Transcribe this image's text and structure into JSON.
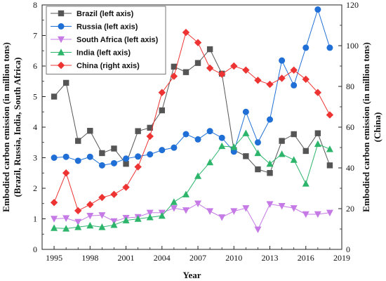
{
  "chart_data": {
    "type": "line",
    "x": [
      1995,
      1996,
      1997,
      1998,
      1999,
      2000,
      2001,
      2002,
      2003,
      2004,
      2005,
      2006,
      2007,
      2008,
      2009,
      2010,
      2011,
      2012,
      2013,
      2014,
      2015,
      2016,
      2017,
      2018
    ],
    "xlabel": "Year",
    "ylabel_left": "Embodied carbon emission (in million tons) (Brazil, Russia, India, South Africa)",
    "ylabel_left_lines": [
      "Embodied carbon emission (in million tons)",
      "(Brazil, Russia, India, South Africa)"
    ],
    "ylabel_right": "Embodied carbon emission (in million tons) (China)",
    "ylabel_right_lines": [
      "Embodied carbon emission (in million tons)",
      "(China)"
    ],
    "xlim": [
      1994,
      2019
    ],
    "x_ticks": [
      1995,
      1998,
      2001,
      2004,
      2007,
      2010,
      2013,
      2016,
      2019
    ],
    "ylim_left": [
      0,
      8
    ],
    "y_ticks_left": [
      0,
      1,
      2,
      3,
      4,
      5,
      6,
      7,
      8
    ],
    "ylim_right": [
      0,
      120
    ],
    "y_ticks_right": [
      0,
      20,
      40,
      60,
      80,
      100,
      120
    ],
    "legend_position": "top-left",
    "grid": false,
    "series": [
      {
        "name": "Brazil (left axis)",
        "axis": "left",
        "color": "#555555",
        "marker": "square",
        "values": [
          5.0,
          5.45,
          3.55,
          3.88,
          3.15,
          3.3,
          2.8,
          3.87,
          3.98,
          4.55,
          5.98,
          5.8,
          6.1,
          6.55,
          5.75,
          3.25,
          3.05,
          2.62,
          2.5,
          3.55,
          3.77,
          3.22,
          3.8,
          2.75
        ]
      },
      {
        "name": "Russia (left axis)",
        "axis": "left",
        "color": "#1f6fd6",
        "marker": "circle",
        "values": [
          3.0,
          3.03,
          2.9,
          3.03,
          2.75,
          2.82,
          2.97,
          3.04,
          3.11,
          3.25,
          3.33,
          3.77,
          3.6,
          3.87,
          3.65,
          3.2,
          4.5,
          3.5,
          4.25,
          6.18,
          5.37,
          6.6,
          7.85,
          6.6
        ]
      },
      {
        "name": "South Africa (left axis)",
        "axis": "left",
        "color": "#c57ae6",
        "marker": "triangle-down",
        "values": [
          1.0,
          1.02,
          0.9,
          1.1,
          1.12,
          0.92,
          1.03,
          1.06,
          1.2,
          1.2,
          1.35,
          1.28,
          1.5,
          1.25,
          1.05,
          1.25,
          1.35,
          0.65,
          1.48,
          1.42,
          1.35,
          1.15,
          1.15,
          1.2
        ]
      },
      {
        "name": "India (left axis)",
        "axis": "left",
        "color": "#2db56b",
        "marker": "triangle-up",
        "values": [
          0.7,
          0.68,
          0.73,
          0.78,
          0.73,
          0.8,
          0.95,
          1.0,
          1.05,
          1.1,
          1.55,
          1.8,
          2.4,
          2.85,
          3.38,
          3.35,
          3.8,
          3.15,
          2.8,
          3.12,
          2.93,
          2.15,
          3.45,
          3.28
        ]
      },
      {
        "name": "China (right axis)",
        "axis": "right",
        "color": "#ee3333",
        "marker": "diamond",
        "values": [
          23,
          37.5,
          19,
          22,
          25.5,
          27,
          30.5,
          40.5,
          55.5,
          77,
          85,
          106.5,
          101.5,
          89,
          86,
          90,
          88,
          83,
          81,
          84,
          88,
          83.5,
          77,
          66
        ]
      }
    ]
  }
}
